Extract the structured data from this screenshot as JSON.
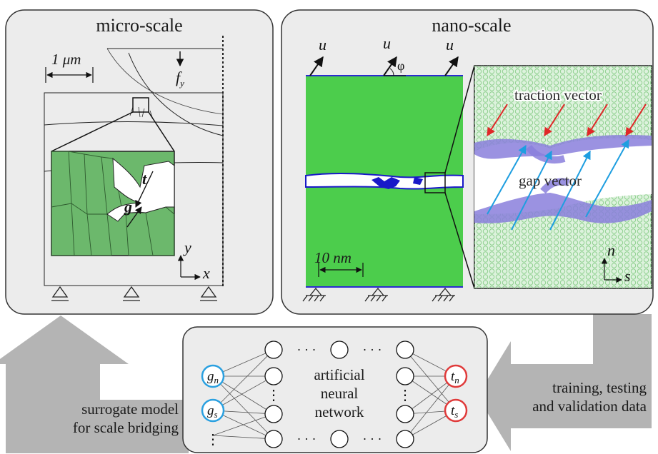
{
  "micro": {
    "title": "micro-scale",
    "scale_bar": "1 μm",
    "force_label": "f",
    "force_sub": "y",
    "traction_sym": "t",
    "gap_sym": "g",
    "axis_y": "y",
    "axis_x": "x"
  },
  "nano": {
    "title": "nano-scale",
    "disp_labels": [
      "u",
      "u",
      "u"
    ],
    "angle_label": "φ",
    "scale_bar": "10 nm",
    "traction_label": "traction vector",
    "gap_label": "gap vector",
    "axis_n": "n",
    "axis_s": "s"
  },
  "ann": {
    "label_line1": "artificial",
    "label_line2": "neural",
    "label_line3": "network",
    "inputs": [
      {
        "sym": "g",
        "sub": "n"
      },
      {
        "sym": "g",
        "sub": "s"
      }
    ],
    "outputs": [
      {
        "sym": "t",
        "sub": "n"
      },
      {
        "sym": "t",
        "sub": "s"
      }
    ],
    "dots": "· · ·"
  },
  "arrows": {
    "left_line1": "surrogate model",
    "left_line2": "for scale bridging",
    "right_line1": "training, testing",
    "right_line2": "and validation data"
  },
  "colors": {
    "panel_bg": "#ececec",
    "green": "#4ccd4c",
    "grain_green": "#6cb86c",
    "input_ring": "#2aa0e0",
    "output_ring": "#e03a3a",
    "traction_arrow": "#e02828",
    "gap_arrow": "#1e9ee0",
    "atoms_blue": "#8a7fdc",
    "arrow_gray": "#b4b4b4"
  }
}
